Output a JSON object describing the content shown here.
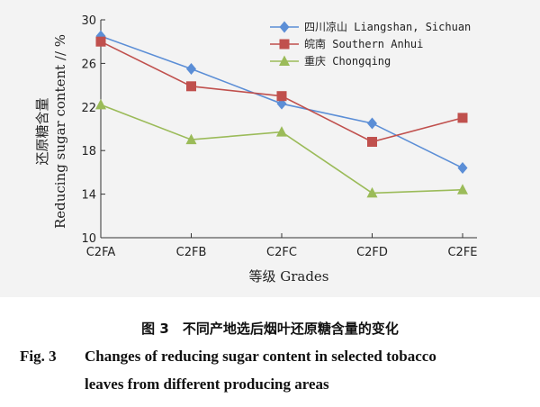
{
  "chart_data": {
    "type": "line",
    "categories": [
      "C2FA",
      "C2FB",
      "C2FC",
      "C2FD",
      "C2FE"
    ],
    "series": [
      {
        "name": "四川凉山 Liangshan, Sichuan",
        "color": "#5b8ed6",
        "marker": "diamond",
        "values": [
          28.5,
          25.5,
          22.3,
          20.5,
          16.4
        ]
      },
      {
        "name": "皖南 Southern Anhui",
        "color": "#c0504d",
        "marker": "square",
        "values": [
          28.0,
          23.9,
          23.0,
          18.8,
          21.0
        ]
      },
      {
        "name": "重庆 Chongqing",
        "color": "#9bbb59",
        "marker": "triangle",
        "values": [
          22.2,
          19.0,
          19.7,
          14.1,
          14.4
        ]
      }
    ],
    "xlabel": "等级 Grades",
    "ylabel": "还原糖含量",
    "ylabel_en": "Reducing sugar content // %",
    "ylim": [
      10,
      30
    ],
    "yticks": [
      10,
      14,
      18,
      22,
      26,
      30
    ],
    "grid": false,
    "legend": "top-right"
  },
  "caption": {
    "cn": "图 3　不同产地选后烟叶还原糖含量的变化",
    "en_label": "Fig. 3",
    "en_line1": "Changes of reducing sugar content in selected tobacco",
    "en_line2": "leaves from different producing areas"
  }
}
